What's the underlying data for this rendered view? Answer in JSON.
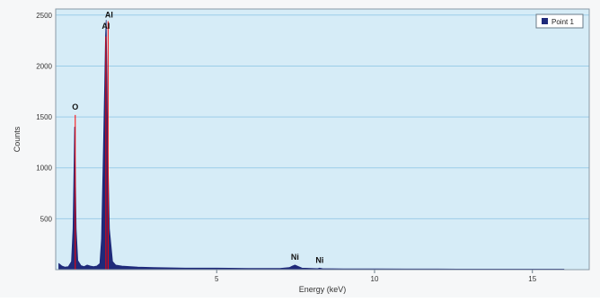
{
  "chart_data": {
    "type": "area",
    "xlabel": "Energy (keV)",
    "ylabel": "Counts",
    "xlim": [
      -0.1,
      16.8
    ],
    "ylim": [
      0,
      2560
    ],
    "x_ticks": [
      5,
      10,
      15
    ],
    "y_ticks": [
      500,
      1000,
      1500,
      2000,
      2500
    ],
    "grid": true,
    "legend_position": "top-right",
    "series": [
      {
        "name": "Point 1",
        "color": "#1f2a7a",
        "x": [
          0.0,
          0.1,
          0.2,
          0.3,
          0.4,
          0.45,
          0.48,
          0.5,
          0.52,
          0.55,
          0.6,
          0.7,
          0.8,
          0.9,
          1.0,
          1.1,
          1.2,
          1.3,
          1.35,
          1.4,
          1.45,
          1.48,
          1.5,
          1.52,
          1.55,
          1.6,
          1.7,
          1.8,
          2.0,
          2.5,
          3.0,
          4.0,
          5.0,
          6.0,
          7.0,
          7.3,
          7.4,
          7.48,
          7.55,
          7.7,
          8.0,
          8.2,
          8.26,
          8.35,
          9.0,
          10.0,
          11.0,
          12.0,
          13.0,
          14.0,
          15.0,
          16.0
        ],
        "values": [
          60,
          35,
          25,
          30,
          80,
          400,
          1000,
          1400,
          1000,
          400,
          90,
          40,
          30,
          45,
          35,
          30,
          35,
          60,
          300,
          1000,
          1800,
          2300,
          2450,
          2000,
          1200,
          400,
          80,
          45,
          35,
          25,
          20,
          15,
          15,
          12,
          12,
          20,
          35,
          45,
          35,
          15,
          12,
          10,
          15,
          10,
          8,
          8,
          6,
          6,
          5,
          5,
          5,
          5
        ]
      }
    ],
    "annotations": [
      {
        "text": "O",
        "x": 0.52,
        "y": 1545
      },
      {
        "text": "Al",
        "x": 1.49,
        "y": 2340
      },
      {
        "text": "Al",
        "x": 1.59,
        "y": 2450
      },
      {
        "text": "Ni",
        "x": 7.48,
        "y": 70
      },
      {
        "text": "Ni",
        "x": 8.26,
        "y": 40
      }
    ],
    "peak_markers": [
      {
        "x": 0.52,
        "y": 1520
      },
      {
        "x": 1.49,
        "y": 2290
      },
      {
        "x": 1.56,
        "y": 2440
      }
    ]
  },
  "colors": {
    "plot_bg": "#d6ecf7",
    "grid": "#9ccde8",
    "spectrum_fill": "#1f2a7a",
    "peak_line": "#ff0000",
    "axis_text": "#333333"
  }
}
